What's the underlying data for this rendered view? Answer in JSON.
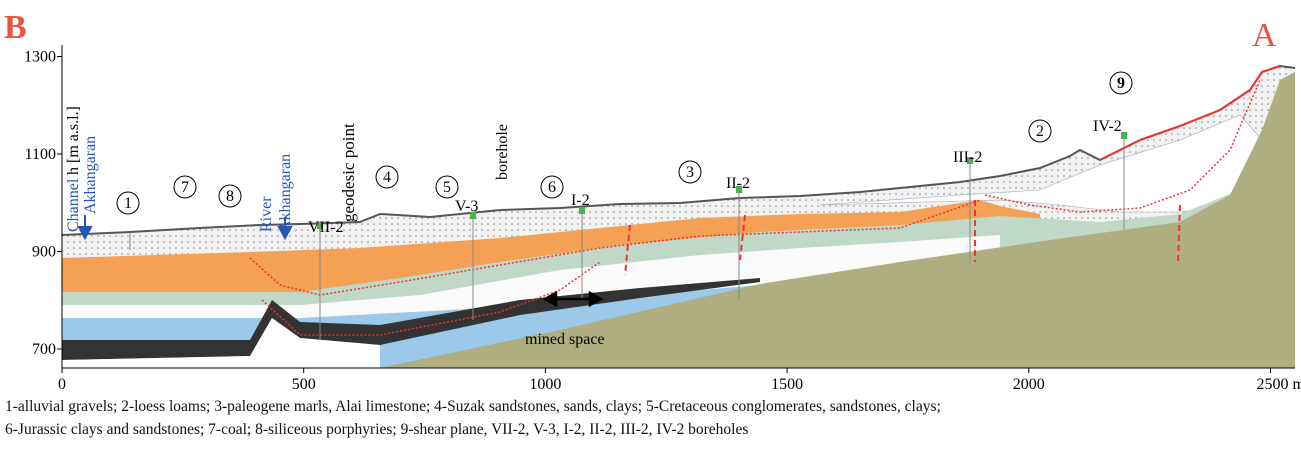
{
  "header": {
    "left_label": "B",
    "right_label": "A"
  },
  "axes": {
    "y_label": "h [m a.s.l.]",
    "yticks": [
      700,
      900,
      1100,
      1300
    ],
    "xticks": [
      0,
      500,
      1000,
      1500,
      2000,
      {
        "value": 2500,
        "label": "2500 m"
      }
    ]
  },
  "labels": {
    "channel": "Channel",
    "channel_name": "Akhangaran",
    "river": "River",
    "river_name": "Akhangaran",
    "geodesic_point": "geodesic point",
    "borehole": "borehole",
    "mined_space": "mined space"
  },
  "boreholes": [
    "VII-2",
    "V-3",
    "I-2",
    "II-2",
    "III-2",
    "IV-2"
  ],
  "layer_numbers": [
    "1",
    "2",
    "3",
    "4",
    "5",
    "6",
    "7",
    "8",
    "9"
  ],
  "caption": [
    "1-alluvial gravels;  2-loess loams;  3-paleogene marls, Alai limestone; 4-Suzak sandstones, sands, clays; 5-Cretaceous conglomerates, sandstones, clays;",
    "6-Jurassic clays and sandstones; 7-coal; 8-siliceous porphyries; 9-shear plane, VII-2, V-3, I-2, II-2, III-2, IV-2 boreholes"
  ]
}
